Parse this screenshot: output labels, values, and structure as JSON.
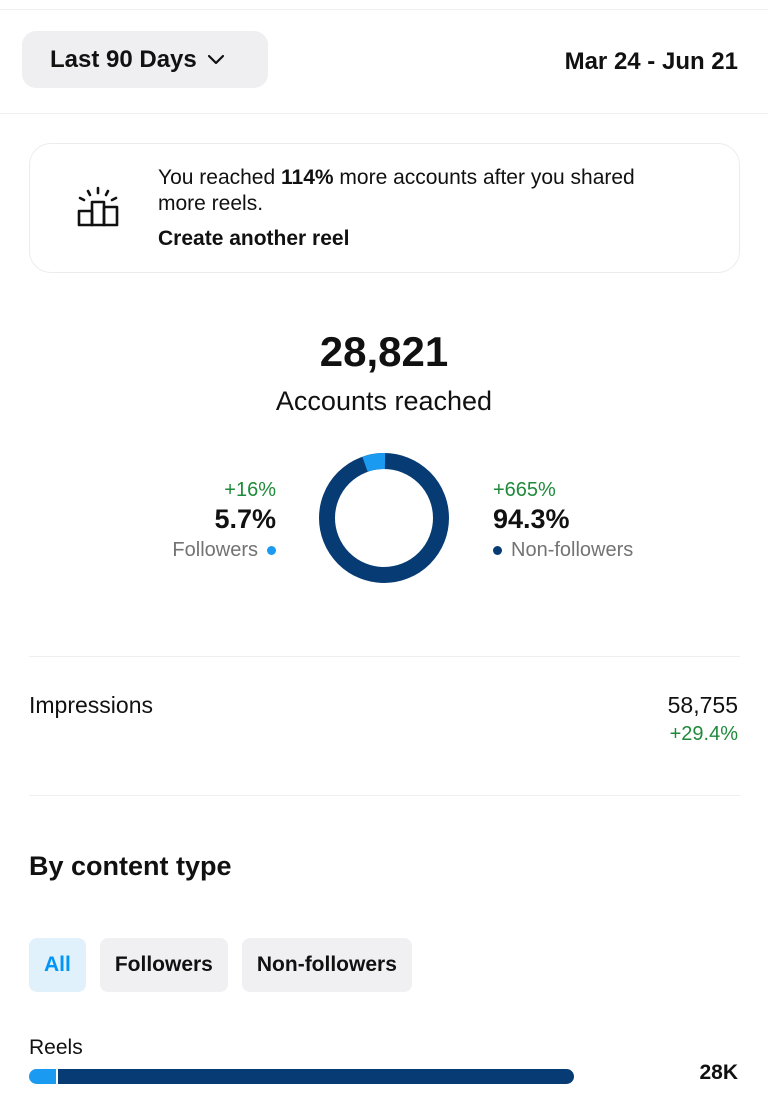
{
  "header": {
    "range_label": "Last 90 Days",
    "date_range": "Mar 24 - Jun 21"
  },
  "tip": {
    "text_before": "You reached ",
    "highlight": "114%",
    "text_after": " more accounts after you shared more reels.",
    "link_label": "Create another reel"
  },
  "reach": {
    "total": "28,821",
    "label": "Accounts reached",
    "followers": {
      "change": "+16%",
      "percent": "5.7%",
      "label": "Followers",
      "fraction": 0.057
    },
    "non_followers": {
      "change": "+665%",
      "percent": "94.3%",
      "label": "Non-followers",
      "fraction": 0.943
    }
  },
  "impressions": {
    "label": "Impressions",
    "value": "58,755",
    "change": "+29.4%"
  },
  "content_type": {
    "title": "By content type",
    "filters": [
      {
        "label": "All",
        "active": true
      },
      {
        "label": "Followers",
        "active": false
      },
      {
        "label": "Non-followers",
        "active": false
      }
    ],
    "rows": [
      {
        "label": "Reels",
        "value": "28K",
        "followers_fraction": 0.05,
        "non_followers_fraction": 0.95,
        "fill_of_max": 1.0
      }
    ]
  },
  "colors": {
    "followers": "#1a9af0",
    "non_followers": "#073b73",
    "positive": "#1f8a3b"
  },
  "icons": {
    "range_dropdown": "chevron-down-icon",
    "tip": "podium-icon"
  }
}
